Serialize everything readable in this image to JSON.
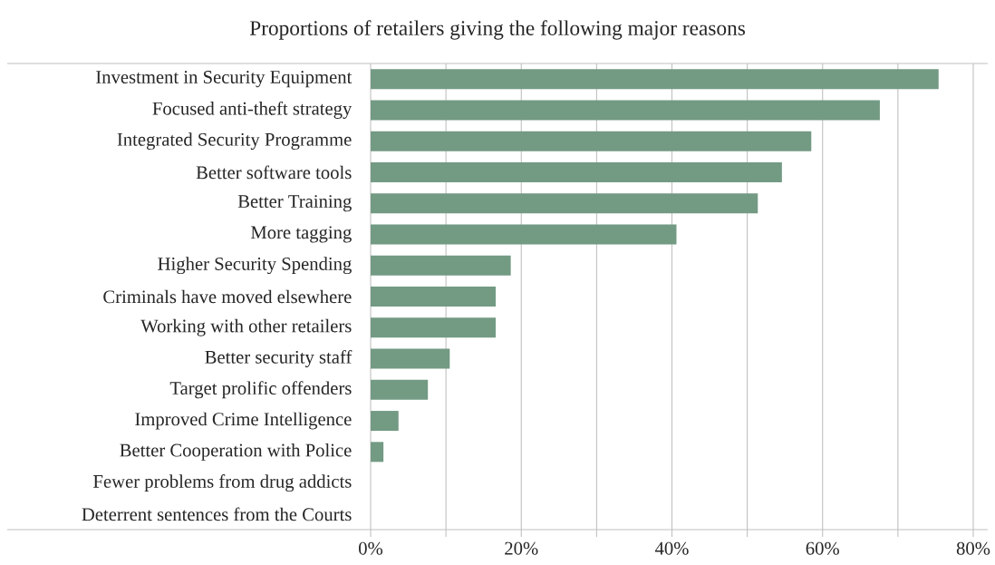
{
  "chart_data": {
    "type": "bar",
    "orientation": "horizontal",
    "title": "Proportions of retailers giving the following major reasons",
    "categories": [
      "Investment in Security Equipment",
      "Focused anti-theft strategy",
      "Integrated Security Programme",
      "Better software tools",
      "Better Training",
      "More  tagging",
      "Higher Security Spending",
      "Criminals have moved elsewhere",
      "Working with other retailers",
      "Better security staff",
      "Target prolific offenders",
      "Improved Crime Intelligence",
      "Better Cooperation with Police",
      "Fewer  problems from drug addicts",
      "Deterrent sentences from the Courts"
    ],
    "values": [
      75.4,
      67.6,
      58.5,
      54.6,
      51.4,
      40.6,
      18.6,
      16.6,
      16.6,
      10.5,
      7.6,
      3.7,
      1.7,
      0,
      0
    ],
    "color": "#739a83",
    "xlim": [
      0,
      80
    ],
    "xticks": [
      {
        "value": 0,
        "label": "0%"
      },
      {
        "value": 10,
        "label": null
      },
      {
        "value": 20,
        "label": "20%"
      },
      {
        "value": 30,
        "label": null
      },
      {
        "value": 40,
        "label": "40%"
      },
      {
        "value": 50,
        "label": null
      },
      {
        "value": 60,
        "label": "60%"
      },
      {
        "value": 70,
        "label": null
      },
      {
        "value": 80,
        "label": "80%"
      }
    ],
    "grid": "x"
  }
}
